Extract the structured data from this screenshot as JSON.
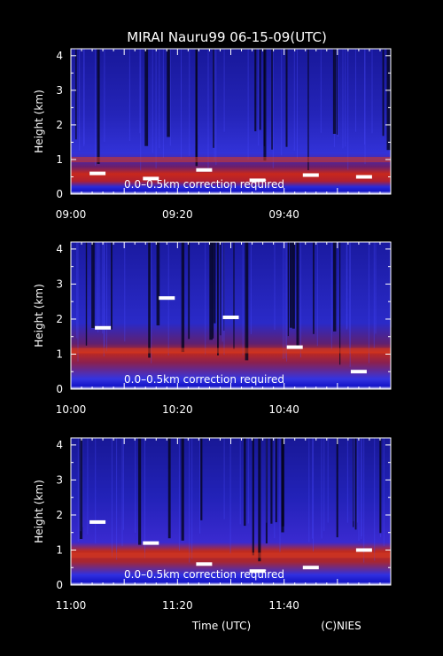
{
  "chart_data": {
    "type": "heatmap",
    "title": "MIRAI Nauru99 06-15-09(UTC)",
    "xlabel": "Time (UTC)",
    "credit": "(C)NIES",
    "ylabel": "Height (km)",
    "ylim": [
      0,
      4.2
    ],
    "yticks": [
      "0",
      "1",
      "2",
      "3",
      "4"
    ],
    "annotation": "0.0–0.5km correction required",
    "colors": {
      "background": "#000000",
      "low": "#0a0a8c",
      "mid": "#3c3cff",
      "high": "#e0301a",
      "peak": "#ffffff"
    },
    "panels": [
      {
        "time_range": [
          "09:00",
          "10:00"
        ],
        "xtick_labels": [
          "09:00",
          "09:20",
          "09:40"
        ],
        "boundary_layer_top_km": 0.55,
        "aerosol_layer_km": 1.0,
        "cloud_base_km": [
          0.6,
          0.45,
          0.7,
          0.4,
          0.55,
          0.5
        ]
      },
      {
        "time_range": [
          "10:00",
          "11:00"
        ],
        "xtick_labels": [
          "10:00",
          "10:20",
          "10:40"
        ],
        "boundary_layer_top_km": 1.0,
        "aerosol_layer_km": 1.1,
        "cloud_base_km": [
          1.75,
          2.6,
          2.05,
          1.2,
          0.5
        ]
      },
      {
        "time_range": [
          "11:00",
          "12:00"
        ],
        "xtick_labels": [
          "11:00",
          "11:20",
          "11:40"
        ],
        "boundary_layer_top_km": 0.9,
        "aerosol_layer_km": 0.85,
        "cloud_base_km": [
          1.8,
          1.2,
          0.6,
          0.4,
          0.5,
          1.0
        ]
      }
    ]
  }
}
